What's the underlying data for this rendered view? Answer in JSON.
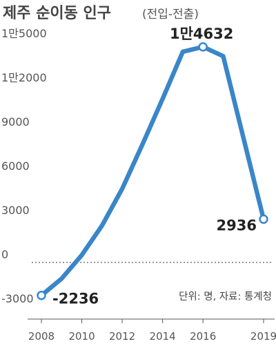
{
  "chart_data": {
    "type": "line",
    "title": "제주 순이동 인구",
    "subtitle": "(전입-전출)",
    "x": [
      2008,
      2009,
      2010,
      2011,
      2012,
      2013,
      2014,
      2015,
      2016,
      2017,
      2019
    ],
    "series": [
      {
        "values": [
          -2236,
          -1100,
          500,
          2500,
          5000,
          8000,
          11100,
          14300,
          14632,
          14000,
          2936
        ]
      }
    ],
    "xticks": [
      "2008",
      "2010",
      "2012",
      "2014",
      "2016",
      "2019"
    ],
    "yticks": [
      "-3000",
      "0",
      "3000",
      "6000",
      "9000",
      "1만2000",
      "1만5000"
    ],
    "ylim": [
      -3000,
      15000
    ],
    "xlim": [
      2008,
      2019
    ],
    "annotations": [
      {
        "x": 2008,
        "value": -2236,
        "text": "-2236"
      },
      {
        "x": 2016,
        "value": 14632,
        "text": "1만4632"
      },
      {
        "x": 2019,
        "value": 2936,
        "text": "2936"
      }
    ],
    "source": "단위: 명, 자료: 통계청",
    "colors": {
      "line": "#3a86c8",
      "text": "#222222",
      "axis": "#555555"
    }
  }
}
